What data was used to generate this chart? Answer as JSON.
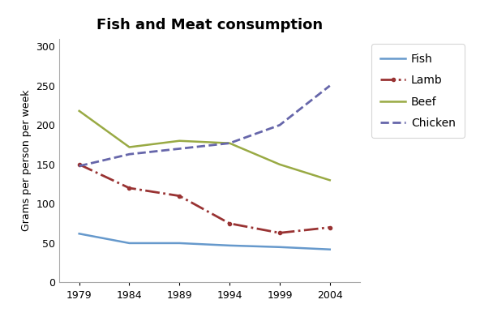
{
  "title": "Fish and Meat consumption",
  "ylabel": "Grams per person per week",
  "years": [
    1979,
    1984,
    1989,
    1994,
    1999,
    2004
  ],
  "series": {
    "Fish": {
      "values": [
        62,
        50,
        50,
        47,
        45,
        42
      ],
      "color": "#6699CC",
      "linestyle": "-",
      "marker": null,
      "linewidth": 1.8
    },
    "Lamb": {
      "values": [
        150,
        120,
        110,
        75,
        63,
        70
      ],
      "color": "#993333",
      "linestyle": "-.",
      "marker": "o",
      "markersize": 3,
      "linewidth": 2.0
    },
    "Beef": {
      "values": [
        218,
        172,
        180,
        177,
        150,
        130
      ],
      "color": "#99AA44",
      "linestyle": "-",
      "marker": null,
      "linewidth": 1.8
    },
    "Chicken": {
      "values": [
        148,
        163,
        170,
        177,
        200,
        250
      ],
      "color": "#6666AA",
      "linestyle": "--",
      "marker": null,
      "linewidth": 2.0
    }
  },
  "ylim": [
    0,
    310
  ],
  "yticks": [
    0,
    50,
    100,
    150,
    200,
    250,
    300
  ],
  "xlim": [
    1977,
    2007
  ],
  "background_color": "#ffffff",
  "legend_order": [
    "Fish",
    "Lamb",
    "Beef",
    "Chicken"
  ],
  "title_fontsize": 13,
  "axis_fontsize": 9,
  "tick_fontsize": 9
}
